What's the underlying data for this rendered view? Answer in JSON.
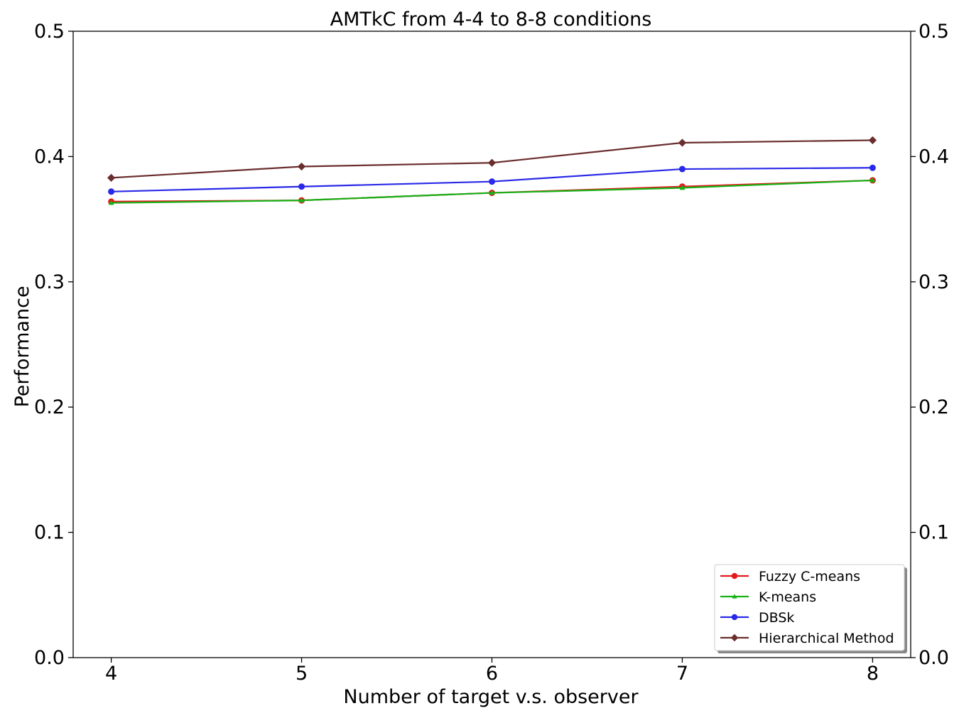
{
  "chart_data": {
    "type": "line",
    "title": "AMTkC from 4-4 to 8-8 conditions",
    "xlabel": "Number of target v.s. observer",
    "ylabel": "Performance",
    "x": [
      4,
      5,
      6,
      7,
      8
    ],
    "x_ticks": [
      "4",
      "5",
      "6",
      "7",
      "8"
    ],
    "xlim": [
      3.8,
      8.2
    ],
    "ylim": [
      0.0,
      0.5
    ],
    "y_ticks": [
      "0.0",
      "0.1",
      "0.2",
      "0.3",
      "0.4",
      "0.5"
    ],
    "y_ticks_right": [
      "0.0",
      "0.1",
      "0.2",
      "0.3",
      "0.4",
      "0.5"
    ],
    "grid": false,
    "legend_position": "lower-right",
    "series": [
      {
        "name": "Fuzzy C-means",
        "color": "#e31a1c",
        "marker": "circle",
        "values": [
          0.364,
          0.365,
          0.371,
          0.376,
          0.381
        ]
      },
      {
        "name": "K-means",
        "color": "#17b217",
        "marker": "triangle",
        "values": [
          0.363,
          0.365,
          0.371,
          0.375,
          0.381
        ]
      },
      {
        "name": "DBSk",
        "color": "#2929e8",
        "marker": "circle",
        "values": [
          0.372,
          0.376,
          0.38,
          0.39,
          0.391
        ]
      },
      {
        "name": "Hierarchical Method",
        "color": "#6b2e2e",
        "marker": "diamond",
        "values": [
          0.383,
          0.392,
          0.395,
          0.411,
          0.413
        ]
      }
    ]
  }
}
